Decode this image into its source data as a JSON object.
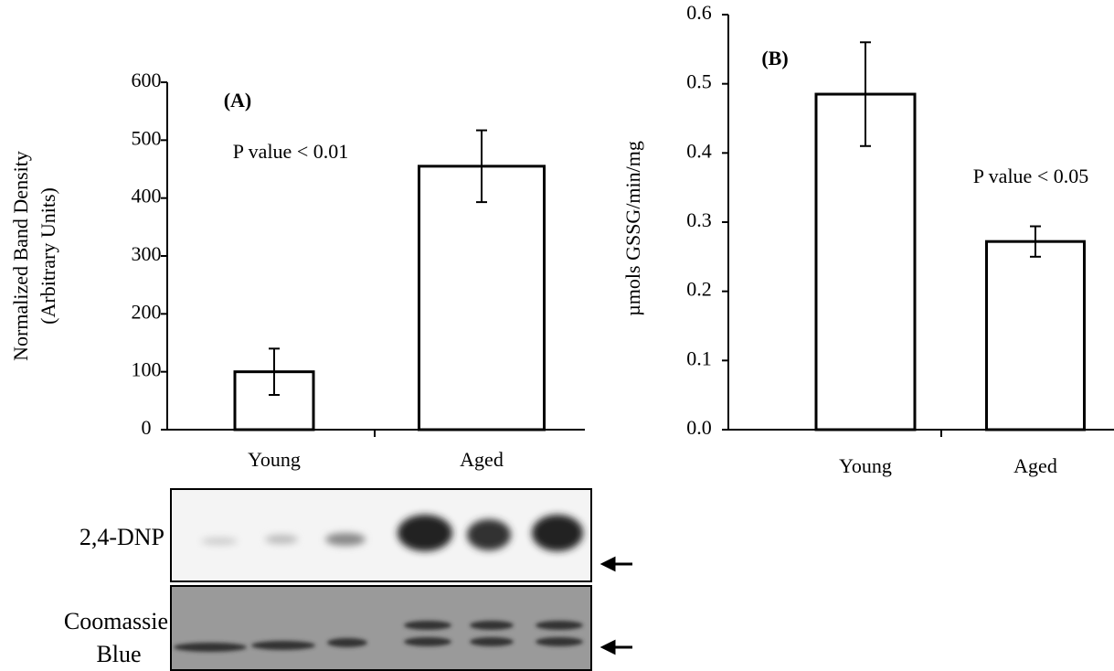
{
  "chart_data": [
    {
      "type": "bar",
      "label": "(A)",
      "annotation": "P value < 0.01",
      "y_label": [
        "Normalized Band Density",
        "(Arbitrary Units)"
      ],
      "categories": [
        "Young",
        "Aged"
      ],
      "values": [
        100,
        455
      ],
      "errors": [
        40,
        62
      ],
      "color": "#ffffff",
      "ylim": [
        0,
        600
      ],
      "yticks": [
        0,
        100,
        200,
        300,
        400,
        500,
        600
      ]
    },
    {
      "type": "bar",
      "label": "(B)",
      "annotation": "P value < 0.05",
      "y_label": [
        "µmols GSSG/min/mg"
      ],
      "categories": [
        "Young",
        "Aged"
      ],
      "values": [
        0.485,
        0.272
      ],
      "errors": [
        0.075,
        0.022
      ],
      "color": "#ffffff",
      "ylim": [
        0,
        0.6
      ],
      "yticks": [
        {
          "value": 0,
          "label": "0.0"
        },
        0.1,
        0.2,
        0.3,
        0.4,
        0.5,
        0.6
      ]
    }
  ],
  "blot": {
    "top_label": "2,4-DNP",
    "bottom_label": [
      "Coomassie",
      "Blue"
    ]
  }
}
